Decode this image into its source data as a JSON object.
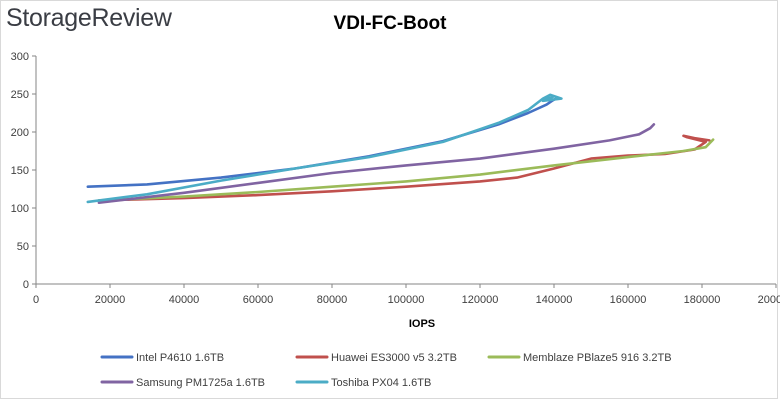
{
  "brand": "StorageReview",
  "chart_data": {
    "type": "line",
    "title": "VDI-FC-Boot",
    "xlabel": "IOPS",
    "ylabel": "",
    "xlim": [
      0,
      200000
    ],
    "ylim": [
      0,
      300
    ],
    "x_ticks": [
      "0",
      "20000",
      "40000",
      "60000",
      "80000",
      "100000",
      "120000",
      "140000",
      "160000",
      "180000",
      "200000"
    ],
    "y_ticks": [
      "0",
      "50",
      "100",
      "150",
      "200",
      "250",
      "300"
    ],
    "grid": false,
    "legend_position": "bottom",
    "series": [
      {
        "name": "Intel P4610 1.6TB",
        "color": "#4472c4",
        "points": [
          [
            14000,
            128
          ],
          [
            30000,
            131
          ],
          [
            50000,
            140
          ],
          [
            70000,
            152
          ],
          [
            90000,
            168
          ],
          [
            110000,
            188
          ],
          [
            125000,
            210
          ],
          [
            133000,
            225
          ],
          [
            138000,
            236
          ],
          [
            139500,
            241
          ],
          [
            140500,
            244
          ]
        ]
      },
      {
        "name": "Huawei ES3000 v5 3.2TB",
        "color": "#c0504d",
        "points": [
          [
            17000,
            110
          ],
          [
            40000,
            113
          ],
          [
            60000,
            117
          ],
          [
            80000,
            122
          ],
          [
            100000,
            128
          ],
          [
            120000,
            135
          ],
          [
            130000,
            140
          ],
          [
            140000,
            152
          ],
          [
            150000,
            165
          ],
          [
            160000,
            169
          ],
          [
            170000,
            171
          ],
          [
            178000,
            177
          ],
          [
            181000,
            187
          ],
          [
            176000,
            193
          ],
          [
            175000,
            195
          ],
          [
            178000,
            192
          ],
          [
            182000,
            189
          ]
        ]
      },
      {
        "name": "Memblaze PBlaze5 916 3.2TB",
        "color": "#9bbb59",
        "points": [
          [
            17000,
            110
          ],
          [
            40000,
            115
          ],
          [
            60000,
            121
          ],
          [
            80000,
            128
          ],
          [
            100000,
            135
          ],
          [
            120000,
            144
          ],
          [
            140000,
            156
          ],
          [
            160000,
            167
          ],
          [
            175000,
            175
          ],
          [
            181000,
            180
          ],
          [
            183000,
            190
          ]
        ]
      },
      {
        "name": "Samsung PM1725a 1.6TB",
        "color": "#8064a2",
        "points": [
          [
            17000,
            107
          ],
          [
            40000,
            120
          ],
          [
            60000,
            133
          ],
          [
            80000,
            146
          ],
          [
            100000,
            156
          ],
          [
            120000,
            165
          ],
          [
            140000,
            178
          ],
          [
            155000,
            189
          ],
          [
            163000,
            197
          ],
          [
            166000,
            205
          ],
          [
            167000,
            210
          ]
        ]
      },
      {
        "name": "Toshiba PX04 1.6TB",
        "color": "#4bacc6",
        "points": [
          [
            14000,
            108
          ],
          [
            30000,
            118
          ],
          [
            50000,
            136
          ],
          [
            70000,
            152
          ],
          [
            90000,
            167
          ],
          [
            110000,
            187
          ],
          [
            125000,
            212
          ],
          [
            133000,
            229
          ],
          [
            137000,
            244
          ],
          [
            139000,
            249
          ],
          [
            142000,
            244
          ],
          [
            137000,
            241
          ],
          [
            140000,
            247
          ]
        ]
      }
    ]
  }
}
